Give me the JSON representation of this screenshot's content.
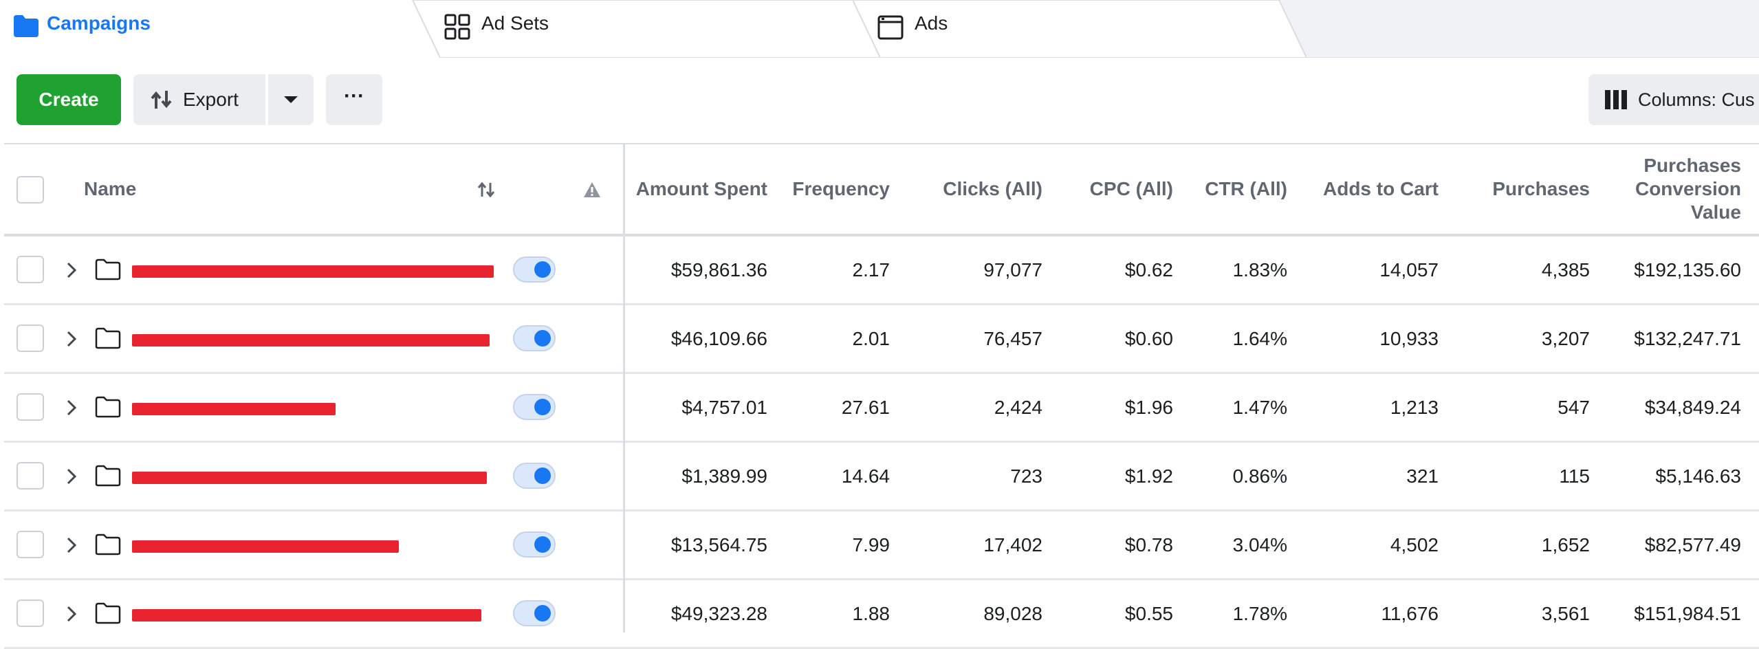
{
  "tabs": [
    {
      "label": "Campaigns",
      "icon": "folder-icon",
      "active": true
    },
    {
      "label": "Ad Sets",
      "icon": "grid-icon"
    },
    {
      "label": "Ads",
      "icon": "window-icon"
    }
  ],
  "toolbar": {
    "create_label": "Create",
    "export_label": "Export",
    "more_label": "···",
    "columns_label": "Columns: Cus"
  },
  "table": {
    "headers": {
      "name": "Name",
      "amount_spent": "Amount Spent",
      "frequency": "Frequency",
      "clicks": "Clicks (All)",
      "cpc": "CPC (All)",
      "ctr": "CTR (All)",
      "adds_to_cart": "Adds to Cart",
      "purchases": "Purchases",
      "conv_value": "Purchases Conversion Value"
    },
    "rows": [
      {
        "amount_spent": "$59,861.36",
        "frequency": "2.17",
        "clicks": "97,077",
        "cpc": "$0.62",
        "ctr": "1.83%",
        "adds_to_cart": "14,057",
        "purchases": "4,385",
        "conv_value": "$192,135.60"
      },
      {
        "amount_spent": "$46,109.66",
        "frequency": "2.01",
        "clicks": "76,457",
        "cpc": "$0.60",
        "ctr": "1.64%",
        "adds_to_cart": "10,933",
        "purchases": "3,207",
        "conv_value": "$132,247.71"
      },
      {
        "amount_spent": "$4,757.01",
        "frequency": "27.61",
        "clicks": "2,424",
        "cpc": "$1.96",
        "ctr": "1.47%",
        "adds_to_cart": "1,213",
        "purchases": "547",
        "conv_value": "$34,849.24"
      },
      {
        "amount_spent": "$1,389.99",
        "frequency": "14.64",
        "clicks": "723",
        "cpc": "$1.92",
        "ctr": "0.86%",
        "adds_to_cart": "321",
        "purchases": "115",
        "conv_value": "$5,146.63"
      },
      {
        "amount_spent": "$13,564.75",
        "frequency": "7.99",
        "clicks": "17,402",
        "cpc": "$0.78",
        "ctr": "3.04%",
        "adds_to_cart": "4,502",
        "purchases": "1,652",
        "conv_value": "$82,577.49"
      },
      {
        "amount_spent": "$49,323.28",
        "frequency": "1.88",
        "clicks": "89,028",
        "cpc": "$0.55",
        "ctr": "1.78%",
        "adds_to_cart": "11,676",
        "purchases": "3,561",
        "conv_value": "$151,984.51"
      }
    ]
  },
  "colors": {
    "accent": "#1877f2",
    "create_button": "#1fa22f",
    "redaction": "#e8242e"
  }
}
